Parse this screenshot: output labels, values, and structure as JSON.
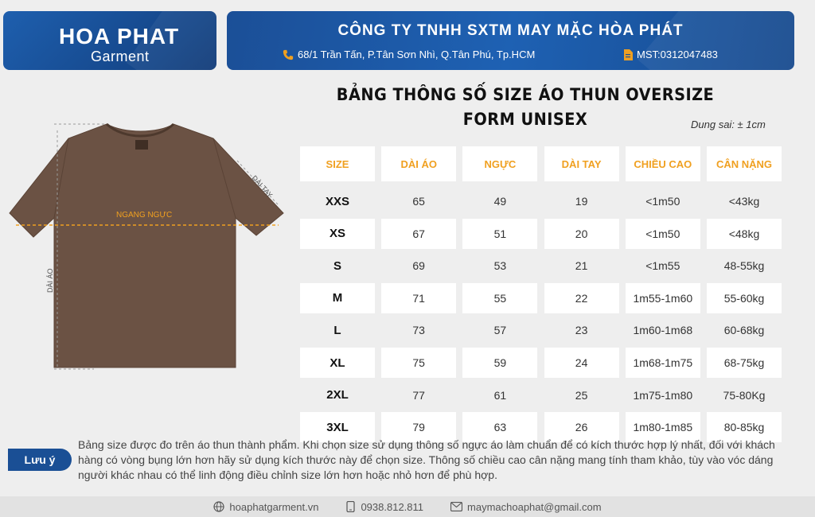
{
  "logo": {
    "title": "HOA PHAT",
    "subtitle": "Garment"
  },
  "company": {
    "name": "CÔNG TY TNHH SXTM MAY MẶC HÒA PHÁT",
    "address": "68/1 Trần Tấn, P.Tân Sơn Nhì, Q.Tân Phú, Tp.HCM",
    "mst": "MST:0312047483"
  },
  "title": {
    "line1": "BẢNG THÔNG SỐ SIZE ÁO THUN OVERSIZE",
    "line2": "FORM UNISEX"
  },
  "tolerance": "Dung sai: ± 1cm",
  "diagram": {
    "chest": "NGANG NGỰC",
    "sleeve": "DÀI TAY",
    "length": "DÀI ÁO"
  },
  "table": {
    "headers": [
      "SIZE",
      "DÀI ÁO",
      "NGỰC",
      "DÀI TAY",
      "CHIỀU CAO",
      "CÂN NẶNG"
    ],
    "rows": [
      [
        "XXS",
        "65",
        "49",
        "19",
        "<1m50",
        "<43kg"
      ],
      [
        "XS",
        "67",
        "51",
        "20",
        "<1m50",
        "<48kg"
      ],
      [
        "S",
        "69",
        "53",
        "21",
        "<1m55",
        "48-55kg"
      ],
      [
        "M",
        "71",
        "55",
        "22",
        "1m55-1m60",
        "55-60kg"
      ],
      [
        "L",
        "73",
        "57",
        "23",
        "1m60-1m68",
        "60-68kg"
      ],
      [
        "XL",
        "75",
        "59",
        "24",
        "1m68-1m75",
        "68-75kg"
      ],
      [
        "2XL",
        "77",
        "61",
        "25",
        "1m75-1m80",
        "75-80Kg"
      ],
      [
        "3XL",
        "79",
        "63",
        "26",
        "1m80-1m85",
        "80-85kg"
      ]
    ]
  },
  "note": {
    "label": "Lưu ý",
    "text": "Bảng size được đo trên áo thun thành phẩm. Khi chọn size sử dụng thông số ngực áo làm chuẩn để có kích thước hợp lý nhất, đối với khách hàng có vòng bụng lớn hơn hãy sử dụng kích thước này để chọn size. Thông số chiều cao cân nặng mang tính tham khảo, tùy vào vóc dáng người khác nhau có thể linh động điều chỉnh size lớn hơn hoặc nhỏ hơn để phù hợp."
  },
  "footer": {
    "website": "hoaphatgarment.vn",
    "phone": "0938.812.811",
    "email": "maymachoaphat@gmail.com"
  },
  "colors": {
    "brand_blue": "#1a4f95",
    "header_orange": "#f0a020",
    "shirt_brown": "#6b5244"
  }
}
